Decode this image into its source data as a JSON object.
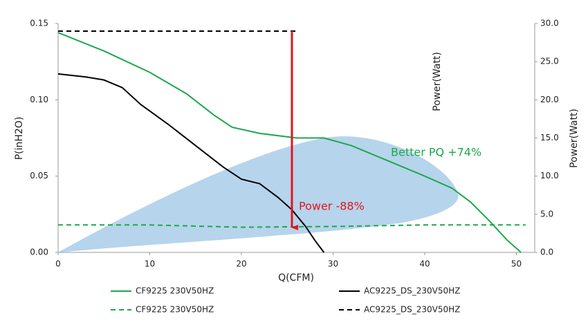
{
  "chart_data": {
    "type": "line",
    "x_label": "Q(CFM)",
    "y_label": "P(inH2O)",
    "y2_label": "Power(Watt)",
    "annotations": [
      "Power -88%",
      "Better PQ +74%",
      "Power(Watt)"
    ],
    "xlim": [
      0,
      52
    ],
    "xticks": [
      0,
      10,
      20,
      30,
      40,
      50
    ],
    "ylim": [
      0,
      0.15
    ],
    "yticks": [
      {
        "value": 0,
        "label": "0.00"
      },
      {
        "value": 0.05,
        "label": "0.05"
      },
      {
        "value": 0.1,
        "label": "0.10"
      },
      {
        "value": 0.15,
        "label": "0.15"
      }
    ],
    "y2lim": [
      0,
      30
    ],
    "y2ticks": [
      {
        "value": 0,
        "label": "0.0"
      },
      {
        "value": 5,
        "label": "5.0"
      },
      {
        "value": 10,
        "label": "10.0"
      },
      {
        "value": 15,
        "label": "15.0"
      },
      {
        "value": 20,
        "label": "20.0"
      },
      {
        "value": 25,
        "label": "25.0"
      },
      {
        "value": 30,
        "label": "30.0"
      }
    ],
    "grid": false,
    "series": [
      {
        "name": "CF9225 230V50HZ",
        "color": "#1aa84a",
        "dash": false,
        "x": [
          0,
          5,
          10,
          14,
          17,
          19,
          22,
          26,
          29,
          32,
          36,
          40,
          43,
          45,
          47,
          49,
          50.5
        ],
        "values": [
          0.144,
          0.132,
          0.118,
          0.104,
          0.09,
          0.082,
          0.078,
          0.075,
          0.075,
          0.07,
          0.06,
          0.05,
          0.042,
          0.033,
          0.021,
          0.008,
          0
        ]
      },
      {
        "name": "AC9225_DS_230V50HZ",
        "color": "#000000",
        "dash": false,
        "x": [
          0,
          3,
          5,
          7,
          9,
          12,
          15,
          18,
          20,
          22,
          24,
          25.5,
          27,
          28,
          29
        ],
        "values": [
          0.117,
          0.115,
          0.113,
          0.108,
          0.097,
          0.084,
          0.07,
          0.056,
          0.048,
          0.045,
          0.036,
          0.028,
          0.017,
          0.008,
          0
        ]
      },
      {
        "name": "CF9225 230V50HZ",
        "color": "#1aa84a",
        "dash": true,
        "axis": "y2",
        "x": [
          0,
          10,
          20,
          30,
          40,
          51
        ],
        "values": [
          3.6,
          3.6,
          3.3,
          3.4,
          3.6,
          3.6
        ]
      },
      {
        "name": "AC9225_DS_230V50HZ",
        "color": "#000000",
        "dash": true,
        "axis": "y2",
        "x": [
          0,
          26
        ],
        "values": [
          29,
          29
        ]
      }
    ]
  }
}
